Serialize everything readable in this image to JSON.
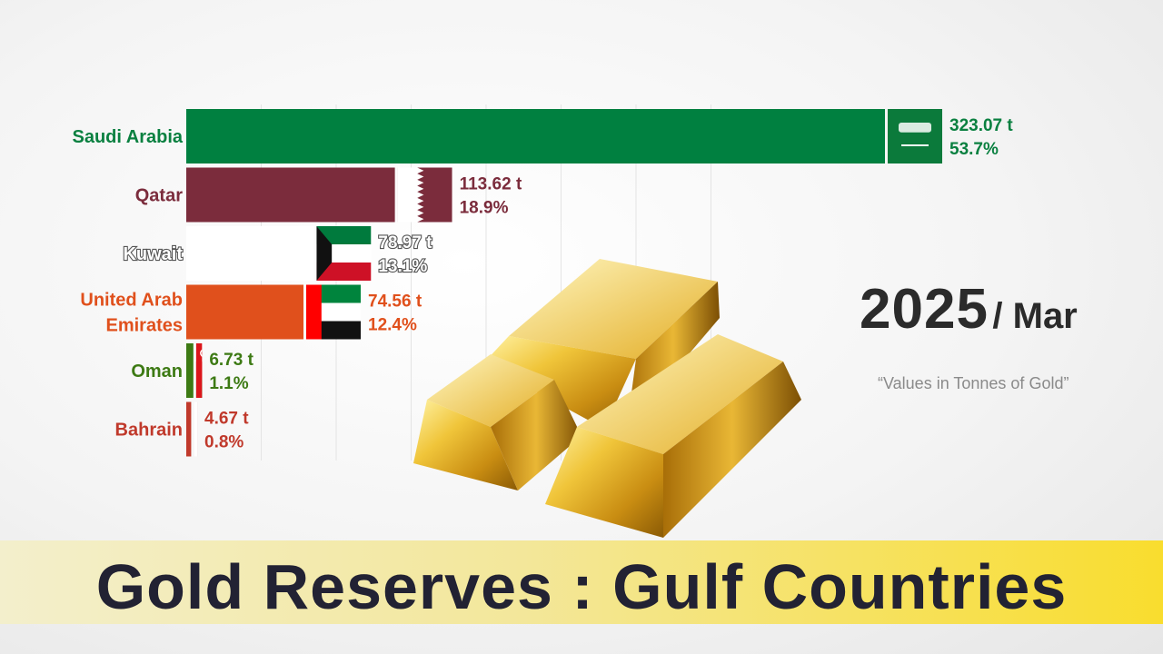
{
  "chart_data": {
    "type": "bar",
    "orientation": "horizontal",
    "categories": [
      "Saudi Arabia",
      "Qatar",
      "Kuwait",
      "United Arab Emirates",
      "Oman",
      "Bahrain"
    ],
    "label_lines": [
      [
        "Saudi Arabia"
      ],
      [
        "Qatar"
      ],
      [
        "Kuwait"
      ],
      [
        "United Arab",
        "Emirates"
      ],
      [
        "Oman"
      ],
      [
        "Bahrain"
      ]
    ],
    "values": [
      323.07,
      113.62,
      78.97,
      74.56,
      6.73,
      4.67
    ],
    "value_labels": [
      "323.07 t",
      "113.62 t",
      "78.97 t",
      "74.56 t",
      "6.73 t",
      "4.67 t"
    ],
    "percent_labels": [
      "53.7%",
      "18.9%",
      "13.1%",
      "12.4%",
      "1.1%",
      "0.8%"
    ],
    "colors": [
      "#008040",
      "#7b2c3c",
      "#ffffff",
      "#e0501c",
      "#3d7a14",
      "#c0392b"
    ],
    "label_colors": [
      "#0a8040",
      "#7b2c3c",
      "#ffffff",
      "#e0501c",
      "#3d7a14",
      "#c0392b"
    ],
    "flags": [
      "saudi-arabia-flag",
      "qatar-flag",
      "kuwait-flag",
      "uae-flag",
      "oman-flag",
      "bahrain-flag"
    ],
    "xlim": [
      0,
      323.07
    ],
    "grid": true
  },
  "period": {
    "year": "2025",
    "month": "/ Mar"
  },
  "note": "“Values in Tonnes of Gold”",
  "banner": {
    "title": "Gold Reserves : Gulf Countries"
  },
  "decorations": [
    "gold-bars-image"
  ]
}
